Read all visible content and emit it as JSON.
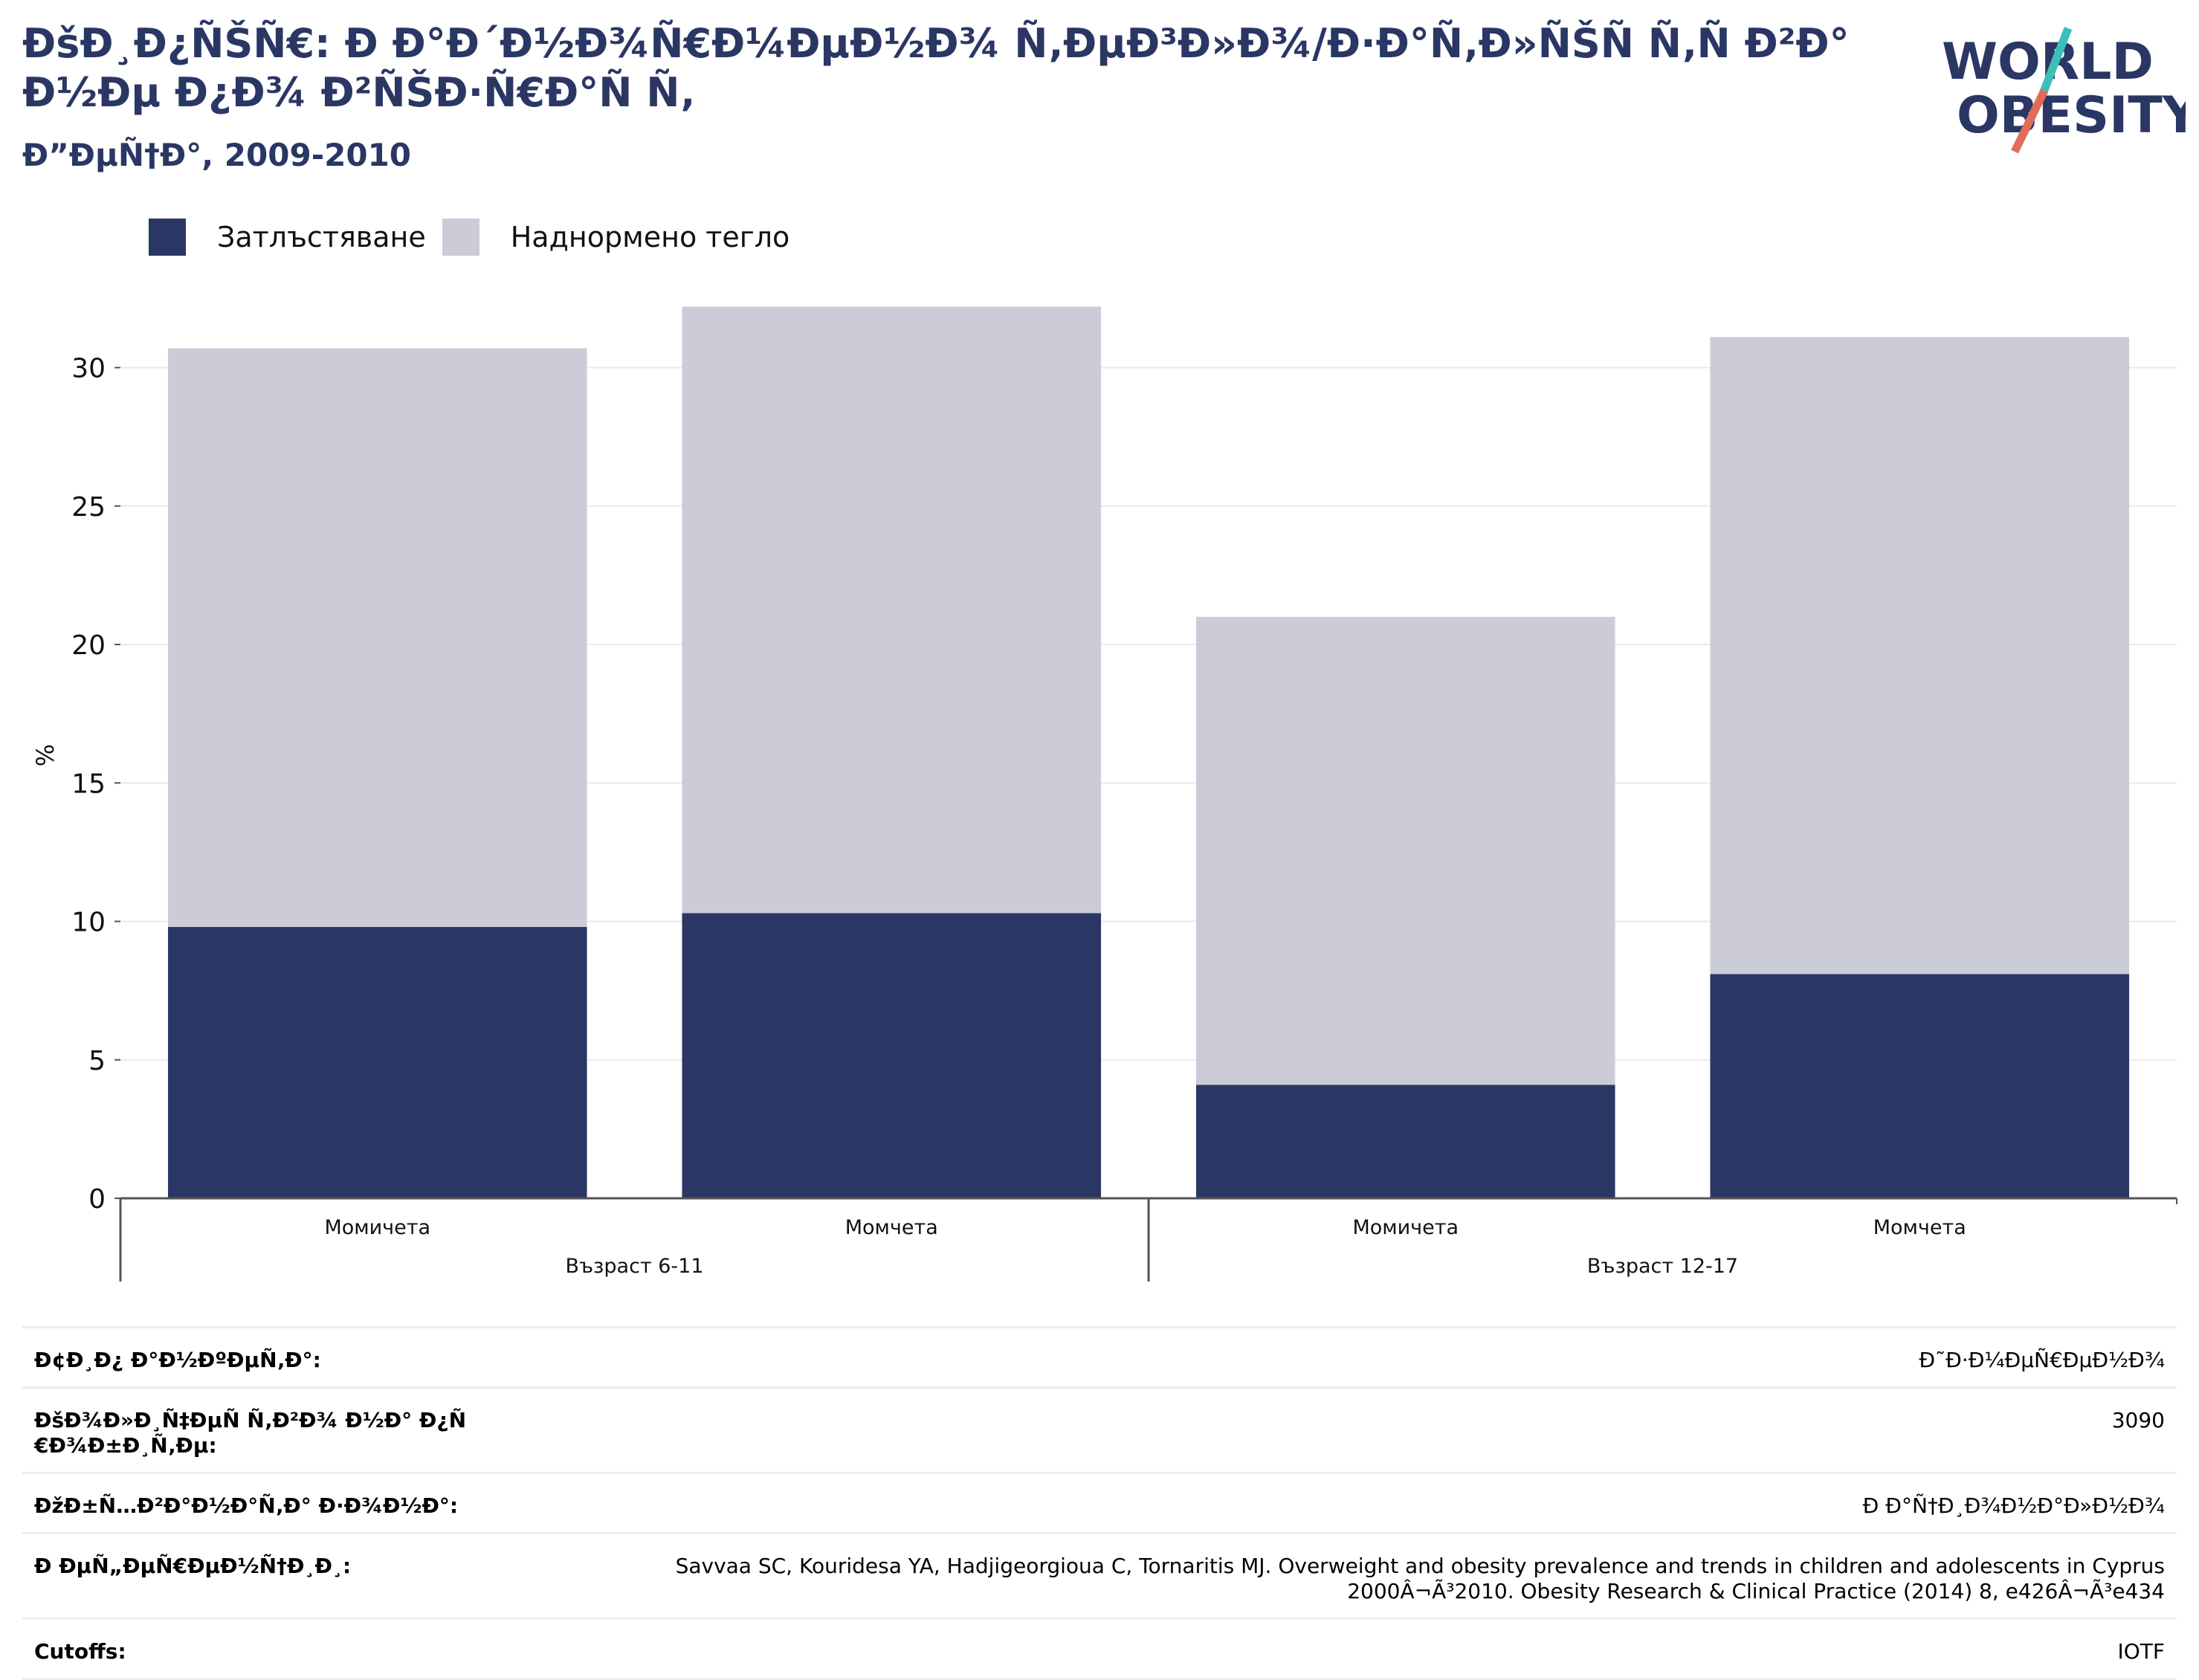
{
  "header": {
    "title": "ÐšÐ¸Ð¿ÑŠÑ€: Ð Ð°Ð´Ð½Ð¾Ñ€Ð¼ÐµÐ½Ð¾ Ñ‚ÐµÐ³Ð»Ð¾/Ð·Ð°Ñ‚Ð»ÑŠÑ Ñ‚Ñ Ð²Ð°Ð½Ðµ Ð¿Ð¾ Ð²ÑŠÐ·Ñ€Ð°Ñ Ñ‚",
    "subtitle": "Ð”ÐµÑ†Ð°, 2009-2010"
  },
  "logo": {
    "line1": "WORLD",
    "line2": "OBESITY",
    "slash_top_color": "#3dbfb8",
    "slash_bottom_color": "#e06c5a"
  },
  "colors": {
    "obesity": "#2a3764",
    "overweight": "#cbccd7",
    "title": "#2a3764"
  },
  "chart_data": {
    "type": "bar",
    "stacked": true,
    "ylabel": "%",
    "ylim": [
      0,
      32
    ],
    "yticks": [
      0,
      5,
      10,
      15,
      20,
      25,
      30
    ],
    "grid": true,
    "legend_position": "top-left",
    "groups": [
      {
        "label": "Възраст 6-11",
        "categories": [
          "Момичета",
          "Момчета"
        ]
      },
      {
        "label": "Възраст 12-17",
        "categories": [
          "Момичета",
          "Момчета"
        ]
      }
    ],
    "categories": [
      "Момичета",
      "Момчета",
      "Момичета",
      "Момчета"
    ],
    "series": [
      {
        "name": "Затлъстяване",
        "color": "#2a3764",
        "values": [
          9.8,
          10.3,
          4.1,
          8.1
        ]
      },
      {
        "name": "Наднормено тегло",
        "color": "#cbccd7",
        "values": [
          20.9,
          21.9,
          16.9,
          23.0
        ]
      }
    ]
  },
  "info": [
    {
      "label": "Ð¢Ð¸Ð¿ Ð°Ð½ÐºÐµÑ‚Ð°:",
      "value": "Ð˜Ð·Ð¼ÐµÑ€ÐµÐ½Ð¾"
    },
    {
      "label": "ÐšÐ¾Ð»Ð¸Ñ‡ÐµÑ Ñ‚Ð²Ð¾ Ð½Ð° Ð¿Ñ€Ð¾Ð±Ð¸Ñ‚Ðµ:",
      "value": "3090"
    },
    {
      "label": "ÐžÐ±Ñ…Ð²Ð°Ð½Ð°Ñ‚Ð° Ð·Ð¾Ð½Ð°:",
      "value": "Ð Ð°Ñ†Ð¸Ð¾Ð½Ð°Ð»Ð½Ð¾"
    },
    {
      "label": "Ð ÐµÑ„ÐµÑ€ÐµÐ½Ñ†Ð¸Ð¸:",
      "value": "Savvaa SC, Kouridesa YA, Hadjigeorgioua C, Tornaritis MJ. Overweight and obesity prevalence and trends in children and adolescents in Cyprus 2000Â¬Ã³2010. Obesity Research & Clinical Practice (2014) 8, e426Â¬Ã³e434"
    },
    {
      "label": "Cutoffs:",
      "value": "IOTF"
    }
  ]
}
